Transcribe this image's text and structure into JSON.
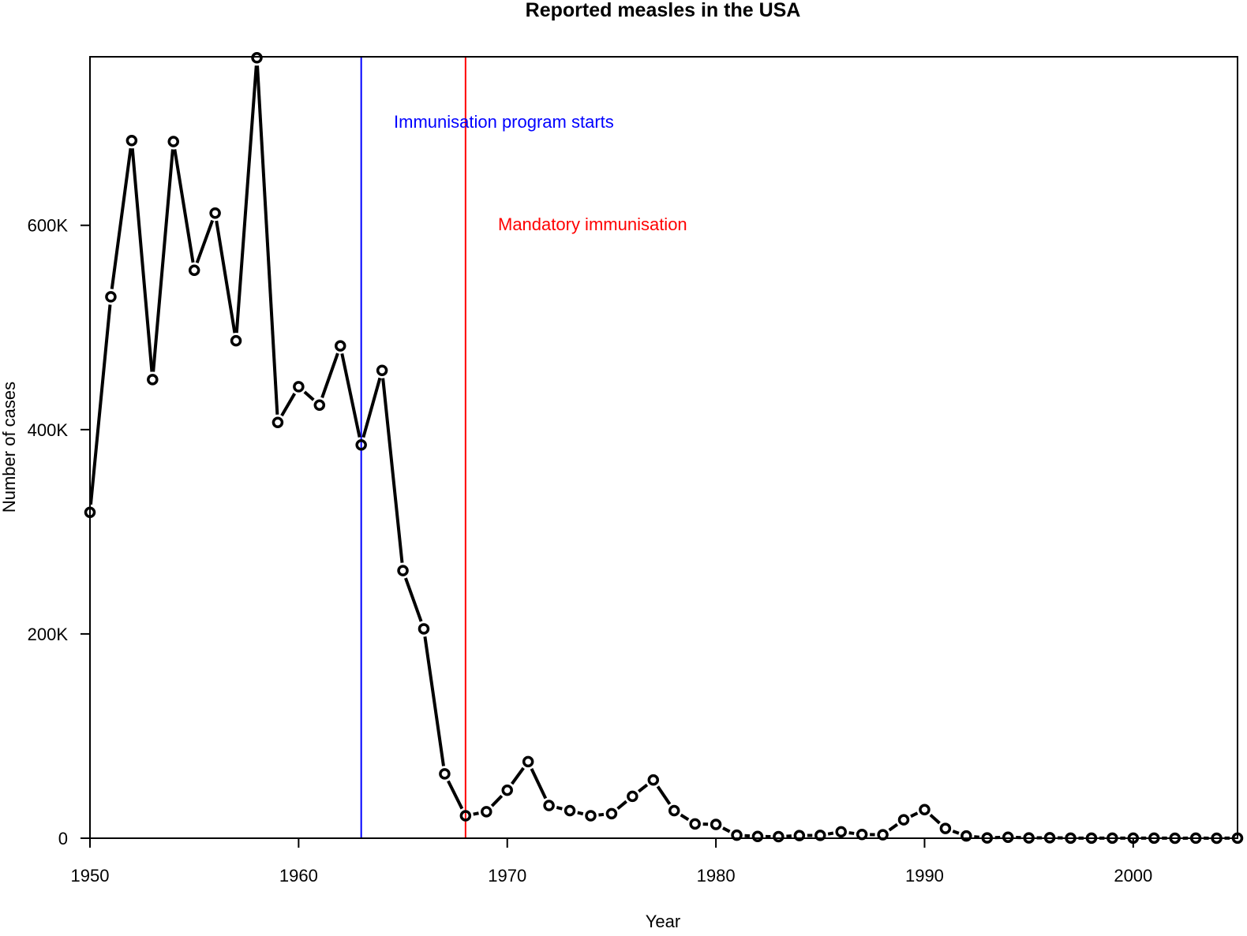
{
  "chart_data": {
    "type": "line",
    "title": "Reported measles in the USA",
    "xlabel": "Year",
    "ylabel": "Number of cases",
    "xlim": [
      1950,
      2005
    ],
    "ylim": [
      0,
      765000
    ],
    "x_ticks": [
      1950,
      1960,
      1970,
      1980,
      1990,
      2000
    ],
    "y_ticks": [
      {
        "value": 0,
        "label": "0"
      },
      {
        "value": 200000,
        "label": "200K"
      },
      {
        "value": 400000,
        "label": "400K"
      },
      {
        "value": 600000,
        "label": "600K"
      }
    ],
    "grid": false,
    "legend": "none",
    "line_color": "#000000",
    "series": [
      {
        "x": [
          1950,
          1951,
          1952,
          1953,
          1954,
          1955,
          1956,
          1957,
          1958,
          1959,
          1960,
          1961,
          1962,
          1963,
          1964,
          1965,
          1966,
          1967,
          1968,
          1969,
          1970,
          1971,
          1972,
          1973,
          1974,
          1975,
          1976,
          1977,
          1978,
          1979,
          1980,
          1981,
          1982,
          1983,
          1984,
          1985,
          1986,
          1987,
          1988,
          1989,
          1990,
          1991,
          1992,
          1993,
          1994,
          1995,
          1996,
          1997,
          1998,
          1999,
          2000,
          2001,
          2002,
          2003,
          2004,
          2005
        ],
        "values": [
          319000,
          530000,
          683000,
          449000,
          682000,
          556000,
          612000,
          487000,
          764000,
          407000,
          442000,
          424000,
          482000,
          385000,
          458000,
          262000,
          205000,
          63000,
          22000,
          26000,
          47000,
          75000,
          32000,
          27000,
          22000,
          24000,
          41000,
          57000,
          27000,
          14000,
          13500,
          3000,
          1700,
          1500,
          2600,
          2800,
          6300,
          3700,
          3400,
          18000,
          28000,
          9600,
          2200,
          300,
          1000,
          300,
          500,
          100,
          100,
          100,
          100,
          100,
          40,
          60,
          40,
          70
        ]
      }
    ],
    "vlines": [
      {
        "x": 1963,
        "color": "#0000ff",
        "label": "Immunisation program starts"
      },
      {
        "x": 1968,
        "color": "#ff0000",
        "label": "Mandatory immunisation"
      }
    ]
  }
}
